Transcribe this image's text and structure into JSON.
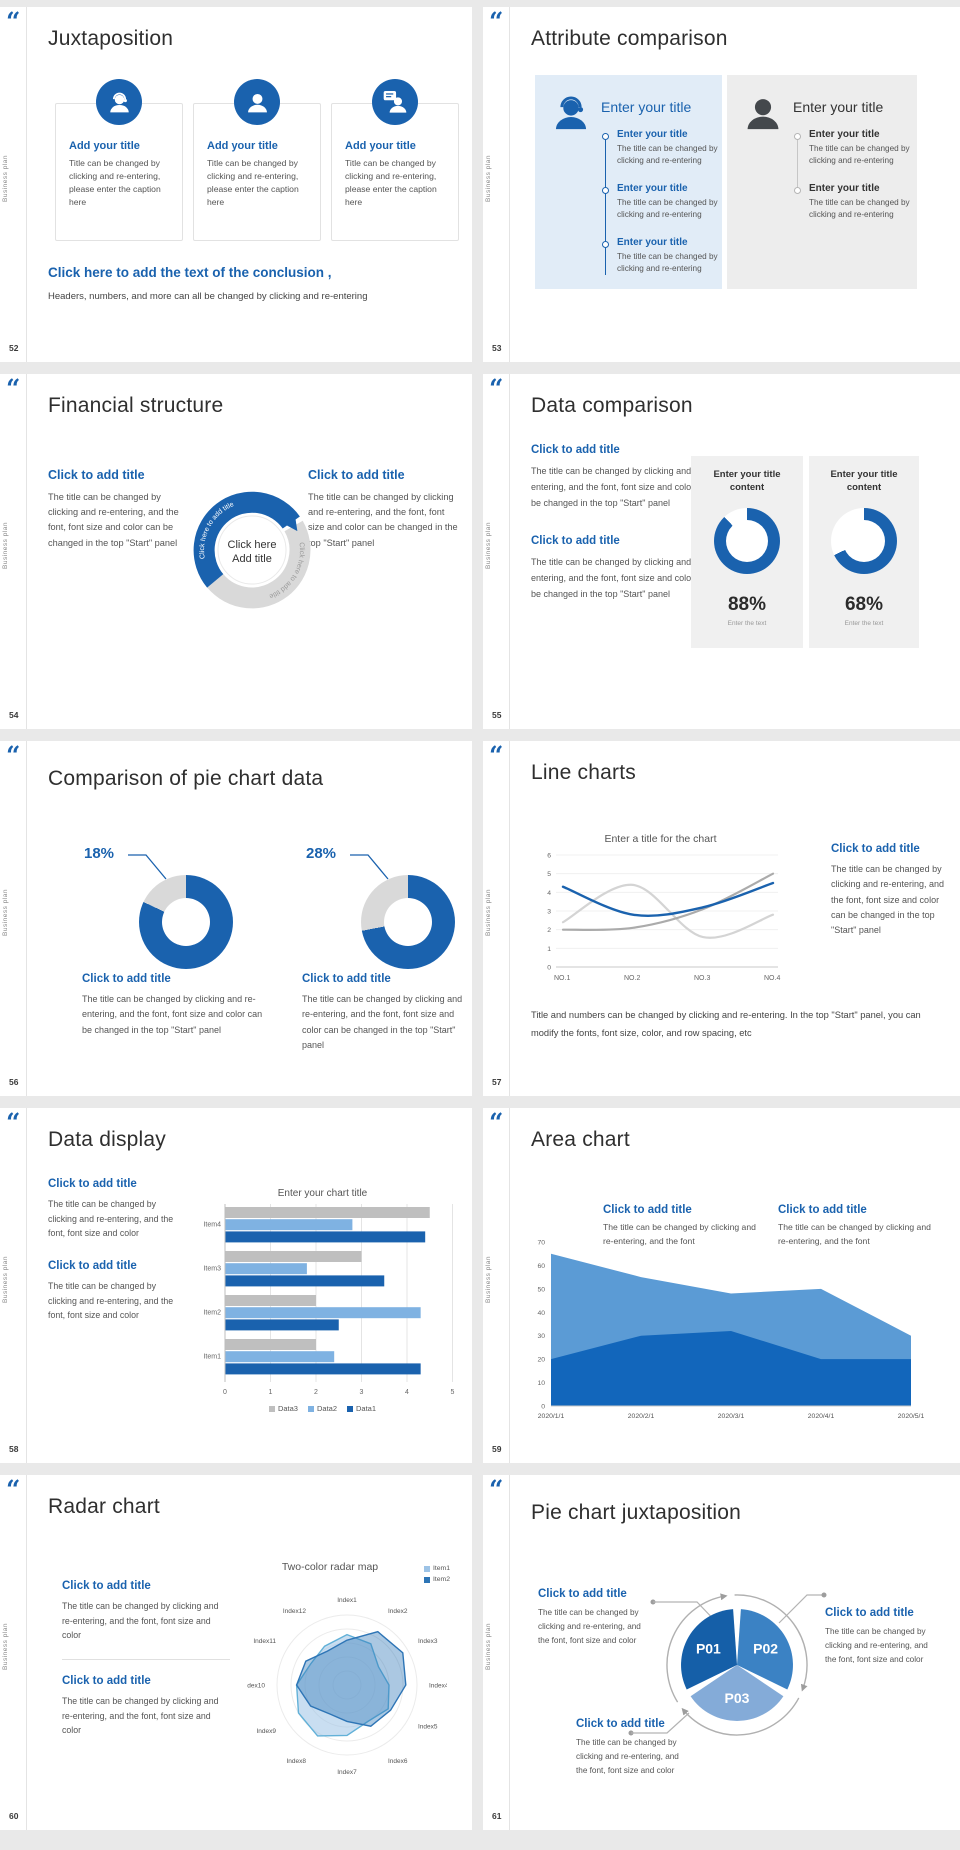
{
  "theme": {
    "accent": "#1a62ae",
    "light_blue": "#7fb2e2",
    "series_gray": "#bfbfbf",
    "panel_blue": "#e1ecf7",
    "panel_gray": "#ededed",
    "dark_icon": "#44484c"
  },
  "common": {
    "sidebar_text": "Business plan",
    "quote": "“"
  },
  "s52": {
    "number": "52",
    "title": "Juxtaposition",
    "cards": [
      {
        "icon": "person-headset-icon",
        "title": "Add your title",
        "body": "Title can be changed by clicking and re-entering, please enter the caption here"
      },
      {
        "icon": "person-icon",
        "title": "Add your title",
        "body": "Title can be changed by clicking and re-entering, please enter the caption here"
      },
      {
        "icon": "person-chat-icon",
        "title": "Add your title",
        "body": "Title can be changed by clicking and re-entering, please enter the caption here"
      }
    ],
    "conclusion_title": "Click here to add the text of the conclusion ,",
    "conclusion_body": "Headers, numbers, and more can all be changed by clicking and re-entering"
  },
  "s53": {
    "number": "53",
    "title": "Attribute comparison",
    "left": {
      "heading": "Enter your title",
      "items": [
        {
          "title": "Enter your title",
          "body": "The title can be changed by clicking and re-entering"
        },
        {
          "title": "Enter your title",
          "body": "The title can be changed by clicking and re-entering"
        },
        {
          "title": "Enter your title",
          "body": "The title can be changed by clicking and re-entering"
        }
      ]
    },
    "right": {
      "heading": "Enter your title",
      "items": [
        {
          "title": "Enter your title",
          "body": "The title can be changed by clicking and re-entering"
        },
        {
          "title": "Enter your title",
          "body": "The title can be changed by clicking and re-entering"
        }
      ]
    }
  },
  "s54": {
    "number": "54",
    "title": "Financial structure",
    "left_heading": "Click to add title",
    "left_body": "The title can be changed by clicking and re-entering, and the font, font size and color can be changed in the top \"Start\" panel",
    "right_heading": "Click to add title",
    "right_body": "The title can be changed by clicking and re-entering, and the font, font size and color can be changed in the top \"Start\" panel",
    "center_line1": "Click here",
    "center_line2": "Add title",
    "arc_text_blue": "Click here to add title",
    "arc_text_gray": "Click here to add title"
  },
  "s55": {
    "number": "55",
    "title": "Data comparison",
    "sections": [
      {
        "heading": "Click to add title",
        "body": "The title can be changed by clicking and re-entering, and the font, font size and color can be changed in the top \"Start\" panel"
      },
      {
        "heading": "Click to add title",
        "body": "The title can be changed by clicking and re-entering, and the font, font size and color can be changed in the top \"Start\" panel"
      }
    ]
  },
  "s56": {
    "number": "56",
    "title": "Comparison of pie chart data",
    "sections": [
      {
        "heading": "Click to add title",
        "body": "The title can be changed by clicking and re-entering, and the font, font size and color can be changed in the top \"Start\" panel"
      },
      {
        "heading": "Click to add title",
        "body": "The title can be changed by clicking and re-entering, and the font, font size and color can be changed in the top \"Start\" panel"
      }
    ]
  },
  "s57": {
    "number": "57",
    "title": "Line charts",
    "heading": "Click to add title",
    "body": "The title can be changed by clicking and re-entering, and the font, font size and color can be changed in the top \"Start\" panel",
    "footer": "Title and numbers can be changed by clicking and re-entering. In the top \"Start\" panel, you can modify the fonts, font size, color, and row spacing, etc"
  },
  "s58": {
    "number": "58",
    "title": "Data display",
    "sections": [
      {
        "heading": "Click to add title",
        "body": "The title can be changed by clicking and re-entering, and the font, font size and color"
      },
      {
        "heading": "Click to add title",
        "body": "The title can be changed by clicking and re-entering, and the font, font size and color"
      }
    ]
  },
  "s59": {
    "number": "59",
    "title": "Area chart",
    "sections": [
      {
        "heading": "Click to add title",
        "body": "The title can be changed by clicking and re-entering, and the font"
      },
      {
        "heading": "Click to add title",
        "body": "The title can be changed by clicking and re-entering, and the font"
      }
    ]
  },
  "s60": {
    "number": "60",
    "title": "Radar chart",
    "sections": [
      {
        "heading": "Click to add title",
        "body": "The title can be changed by clicking and re-entering, and the font, font size and color"
      },
      {
        "heading": "Click to add title",
        "body": "The title can be changed by clicking and re-entering, and the font, font size and color"
      }
    ]
  },
  "s61": {
    "number": "61",
    "title": "Pie chart juxtaposition",
    "callouts": [
      {
        "heading": "Click to add title",
        "body": "The title can be changed by clicking and re-entering, and the font, font size and color"
      },
      {
        "heading": "Click to add title",
        "body": "The title can be changed by clicking and re-entering, and the font, font size and color"
      },
      {
        "heading": "Click to add title",
        "body": "The title can be changed by clicking and re-entering, and the font, font size and color"
      }
    ]
  },
  "chart_data": [
    {
      "type": "donut",
      "slide": "Data comparison",
      "title": "Enter your title content",
      "label": "88%",
      "percent": 88,
      "color": "#1a62ae",
      "rest_color": "#ffffff",
      "caption": "Enter the text"
    },
    {
      "type": "donut",
      "slide": "Data comparison",
      "title": "Enter your title content",
      "label": "68%",
      "percent": 68,
      "color": "#1a62ae",
      "rest_color": "#ffffff",
      "caption": "Enter the text"
    },
    {
      "type": "donut",
      "slide": "Comparison of pie chart data",
      "label": "18%",
      "highlight": 18,
      "percent": 82,
      "color": "#1a62ae",
      "rest_color": "#d9d9d9"
    },
    {
      "type": "donut",
      "slide": "Comparison of pie chart data",
      "label": "28%",
      "highlight": 28,
      "percent": 72,
      "color": "#1a62ae",
      "rest_color": "#d9d9d9"
    },
    {
      "type": "line",
      "title": "Enter a title for the chart",
      "x": [
        "NO.1",
        "NO.2",
        "NO.3",
        "NO.4"
      ],
      "ylim": [
        0,
        6
      ],
      "grid": true,
      "series": [
        {
          "name": "series-blue",
          "color": "#1a62ae",
          "width": 2.4,
          "values": [
            4.3,
            2.8,
            3.2,
            4.5
          ]
        },
        {
          "name": "series-gray",
          "color": "#ababab",
          "width": 2.2,
          "values": [
            2.0,
            2.1,
            3.1,
            5.0
          ]
        },
        {
          "name": "series-light-gray",
          "color": "#d4d4d4",
          "width": 2.2,
          "values": [
            2.4,
            4.4,
            1.6,
            2.8
          ]
        }
      ]
    },
    {
      "type": "bar",
      "title": "Enter your chart title",
      "categories": [
        "Item1",
        "Item2",
        "Item3",
        "Item4"
      ],
      "xlim": [
        0,
        5
      ],
      "legend_order": [
        "Data3",
        "Data2",
        "Data1"
      ],
      "series": [
        {
          "name": "Data1",
          "color": "#1a62ae",
          "values": [
            4.3,
            2.5,
            3.5,
            4.4
          ]
        },
        {
          "name": "Data2",
          "color": "#7fb2e2",
          "values": [
            2.4,
            4.3,
            1.8,
            2.8
          ]
        },
        {
          "name": "Data3",
          "color": "#bfbfbf",
          "values": [
            2.0,
            2.0,
            3.0,
            4.5
          ]
        }
      ]
    },
    {
      "type": "area",
      "x": [
        "2020/1/1",
        "2020/2/1",
        "2020/3/1",
        "2020/4/1",
        "2020/5/1"
      ],
      "ylim": [
        0,
        70
      ],
      "series": [
        {
          "name": "area-light",
          "color": "#5b9bd5",
          "values": [
            65,
            55,
            48,
            50,
            30
          ]
        },
        {
          "name": "area-dark",
          "color": "#1266bb",
          "values": [
            20,
            30,
            32,
            20,
            20
          ]
        }
      ]
    },
    {
      "type": "radar",
      "title": "Two-color radar map",
      "rmax": 5,
      "axes": [
        "Index1",
        "Index2",
        "Index3",
        "Index4",
        "Index5",
        "Index6",
        "Index7",
        "Index8",
        "Index9",
        "Index10",
        "Index11",
        "Index12"
      ],
      "series": [
        {
          "name": "Item1",
          "color": "#9dc3e6",
          "stroke": "#62b1d8",
          "values": [
            3.6,
            3.4,
            2.6,
            3.0,
            3.4,
            3.0,
            3.6,
            4.2,
            4.0,
            3.6,
            3.0,
            3.2
          ]
        },
        {
          "name": "Item2",
          "color": "#2e75b6",
          "stroke": "#2e75b6",
          "values": [
            3.2,
            4.4,
            4.6,
            4.2,
            3.6,
            3.4,
            2.6,
            2.4,
            3.0,
            3.6,
            3.4,
            2.8
          ]
        }
      ]
    },
    {
      "type": "pie",
      "labels": [
        "P01",
        "P02",
        "P03"
      ],
      "values": [
        33.3,
        33.3,
        33.4
      ],
      "colors": [
        "#155fa8",
        "#3b82c4",
        "#84abd8"
      ]
    }
  ]
}
